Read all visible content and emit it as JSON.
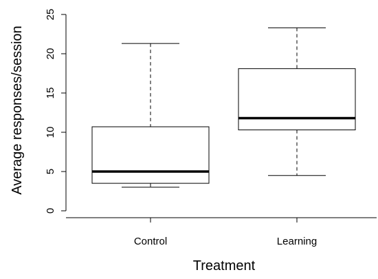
{
  "chart_data": {
    "type": "boxplot",
    "title": "",
    "xlabel": "Treatment",
    "ylabel": "Average responses/session",
    "categories": [
      "Control",
      "Learning"
    ],
    "ylim": [
      0,
      25
    ],
    "yticks": [
      0,
      5,
      10,
      15,
      20,
      25
    ],
    "grid": false,
    "boxes": [
      {
        "category": "Control",
        "whisker_low": 3.0,
        "q1": 3.5,
        "median": 5.0,
        "q3": 10.7,
        "whisker_high": 21.3
      },
      {
        "category": "Learning",
        "whisker_low": 4.5,
        "q1": 10.3,
        "median": 11.8,
        "q3": 18.1,
        "whisker_high": 23.3
      }
    ]
  }
}
